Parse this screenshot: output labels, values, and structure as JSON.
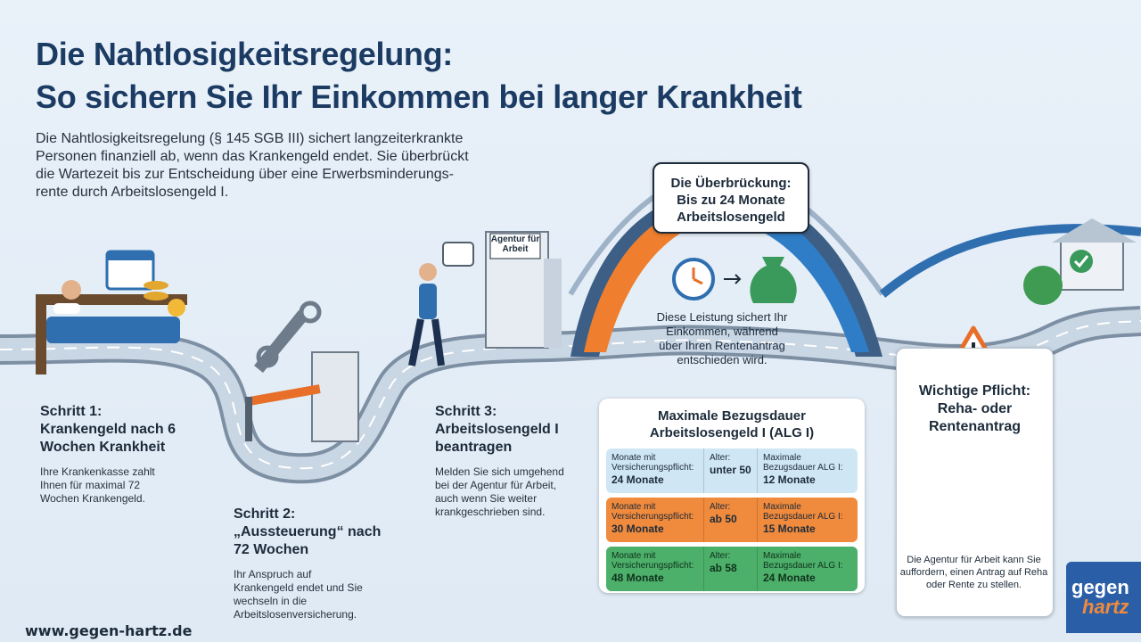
{
  "header": {
    "title_line1": "Die Nahtlosigkeitsregelung:",
    "title_line2": "So sichern Sie Ihr Einkommen bei langer Krankheit"
  },
  "intro": {
    "lines": [
      "Die Nahtlosigkeitsregelung (§ 145 SGB III) sichert langzeiterkrankte",
      "Personen finanziell ab, wenn das Krankengeld endet. Sie überbrückt",
      "die Wartezeit bis zur Entscheidung über eine Erwerbsminderungs-",
      "rente durch Arbeitslosengeld I."
    ]
  },
  "steps": [
    {
      "label": "Schritt 1:",
      "title": "Krankengeld nach 6 Wochen Krankheit",
      "text": "Ihre Krankenkasse zahlt Ihnen für maximal 72 Wochen Krankengeld."
    },
    {
      "label": "Schritt 2:",
      "title": "„Aussteuerung“ nach 72 Wochen",
      "text": "Ihr Anspruch auf Krankengeld endet und Sie wechseln in die Arbeitslosenversicherung."
    },
    {
      "label": "Schritt 3:",
      "title": "Arbeitslosengeld I beantragen",
      "text": "Melden Sie sich umgehend bei der Agentur für Arbeit, auch wenn Sie weiter krankgeschrieben sind."
    }
  ],
  "agency_sign": "Agentur für Arbeit",
  "bridge": {
    "title": "Die Überbrückung:",
    "subtitle": "Bis zu 24 Monate Arbeitslosengeld",
    "text": "Diese Leistung sichert Ihr Einkommen, während über Ihren Rentenantrag entschieden wird."
  },
  "table": {
    "title": "Maximale Bezugsdauer Arbeitslosengeld I (ALG I)",
    "rows": [
      [
        {
          "label": "Monate mit Versicherungspflicht:",
          "value": "24 Monate"
        },
        {
          "label": "Alter:",
          "value": "unter 50"
        },
        {
          "label": "Maximale Bezugsdauer ALG I:",
          "value": "12 Monate"
        }
      ],
      [
        {
          "label": "Monate mit Versicherungspflicht:",
          "value": "30 Monate"
        },
        {
          "label": "Alter:",
          "value": "ab 50"
        },
        {
          "label": "Maximale Bezugsdauer ALG I:",
          "value": "15 Monate"
        }
      ],
      [
        {
          "label": "Monate mit Versicherungspflicht:",
          "value": "48 Monate"
        },
        {
          "label": "Alter:",
          "value": "ab 58"
        },
        {
          "label": "Maximale Bezugsdauer ALG I:",
          "value": "24 Monate"
        }
      ]
    ]
  },
  "warning": {
    "title": "Wichtige Pflicht:",
    "subtitle": "Reha- oder Rentenantrag",
    "text": "Die Agentur für Arbeit kann Sie auffordern, einen Antrag auf Reha oder Rente zu stellen."
  },
  "footer": {
    "url": "www.gegen-hartz.de"
  },
  "logo": {
    "line1": "gegen",
    "line2": "hartz"
  }
}
